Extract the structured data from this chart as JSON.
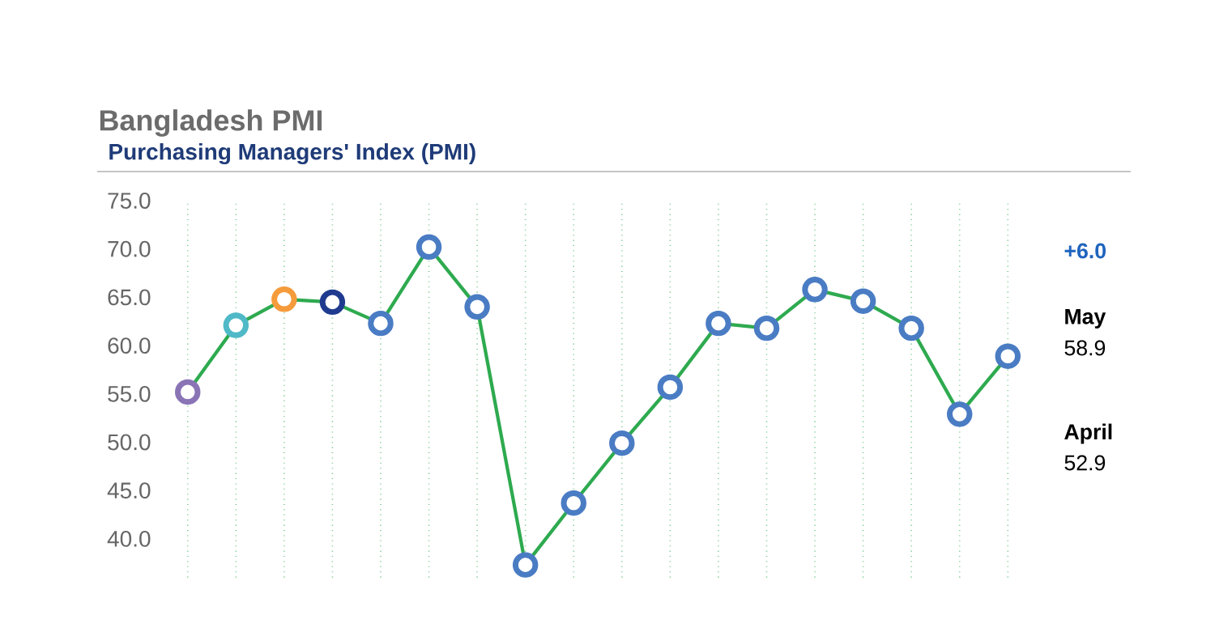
{
  "chart_data": {
    "type": "line",
    "title": "Bangladesh PMI",
    "subtitle": "Purchasing Managers' Index (PMI)",
    "categories": [
      null,
      null,
      null,
      null,
      null,
      null,
      null,
      null,
      null,
      null,
      null,
      null,
      null,
      null,
      null,
      null,
      null,
      null
    ],
    "series": [
      {
        "color": "#2eaa4f",
        "colors": [
          "#8a74b5",
          "#4fb9c7",
          "#f59b3c",
          "#1f3b8f",
          "#4a7cc4",
          "#4a7cc4",
          "#4a7cc4",
          "#4a7cc4",
          "#4a7cc4",
          "#4a7cc4",
          "#4a7cc4",
          "#4a7cc4",
          "#4a7cc4",
          "#4a7cc4",
          "#4a7cc4",
          "#4a7cc4",
          "#4a7cc4",
          "#4a7cc4"
        ],
        "values": [
          55.2,
          62.1,
          64.8,
          64.5,
          62.3,
          70.2,
          64.0,
          37.3,
          43.7,
          49.9,
          55.7,
          62.3,
          61.8,
          65.8,
          64.6,
          61.8,
          52.9,
          58.9
        ]
      }
    ],
    "ylim": [
      36,
      75
    ],
    "yticks": [
      {
        "value": 40,
        "label": "40.0"
      },
      {
        "value": 45,
        "label": "45.0"
      },
      {
        "value": 50,
        "label": "50.0"
      },
      {
        "value": 55,
        "label": "55.0"
      },
      {
        "value": 60,
        "label": "60.0"
      },
      {
        "value": 65,
        "label": "65.0"
      },
      {
        "value": 70,
        "label": "70.0"
      },
      {
        "value": 75,
        "label": "75.0"
      }
    ],
    "grid": "x",
    "marker": "circle",
    "tick_labels": "y",
    "annotations": [
      "+6.0",
      "May",
      "58.9",
      "April",
      "52.9"
    ]
  }
}
